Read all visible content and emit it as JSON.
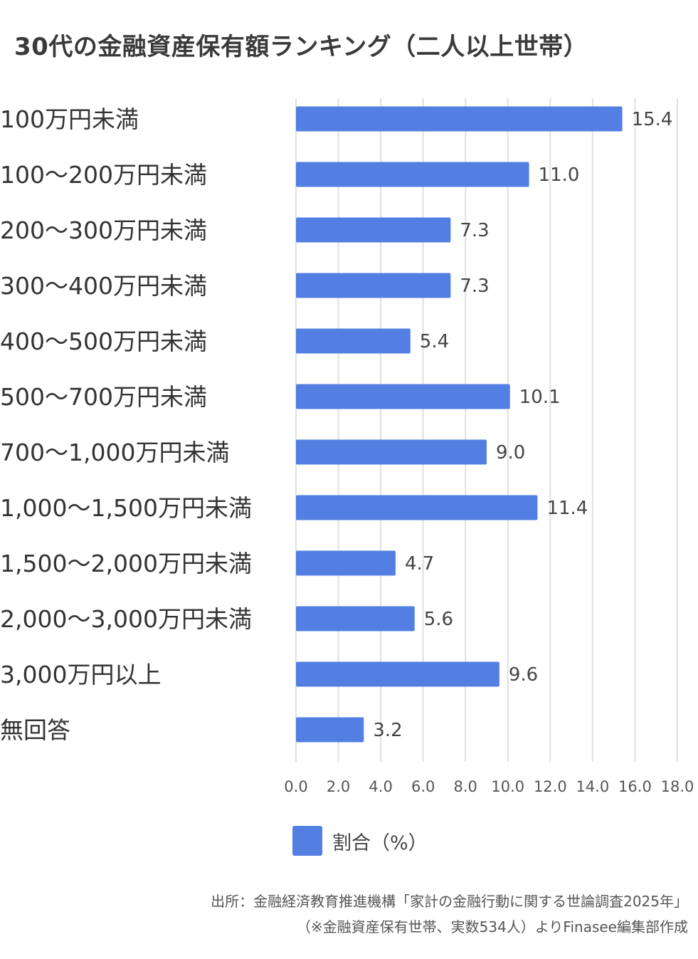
{
  "title": "30代の金融資産保有額ランキング（二人以上世帯）",
  "colors": {
    "bar": "#527fe1",
    "grid": "#e0e0e0",
    "text": "#333333"
  },
  "chart_data": {
    "type": "bar",
    "orientation": "horizontal",
    "categories": [
      "100万円未満",
      "100〜200万円未満",
      "200〜300万円未満",
      "300〜400万円未満",
      "400〜500万円未満",
      "500〜700万円未満",
      "700〜1,000万円未満",
      "1,000〜1,500万円未満",
      "1,500〜2,000万円未満",
      "2,000〜3,000万円未満",
      "3,000万円以上",
      "無回答"
    ],
    "series": [
      {
        "name": "割合（%）",
        "values": [
          15.4,
          11.0,
          7.3,
          7.3,
          5.4,
          10.1,
          9.0,
          11.4,
          4.7,
          5.6,
          9.6,
          3.2
        ]
      }
    ],
    "value_labels": [
      "15.4",
      "11.0",
      "7.3",
      "7.3",
      "5.4",
      "10.1",
      "9.0",
      "11.4",
      "4.7",
      "5.6",
      "9.6",
      "3.2"
    ],
    "xticks": [
      "0.0",
      "2.0",
      "4.0",
      "6.0",
      "8.0",
      "10.0",
      "12.0",
      "14.0",
      "16.0",
      "18.0"
    ],
    "xlim": [
      0,
      18
    ],
    "grid": true,
    "legend_position": "bottom"
  },
  "source": {
    "line1": "出所：金融経済教育推進機構「家計の金融行動に関する世論調査2025年」",
    "line2": "（※金融資産保有世帯、実数534人）よりFinasee編集部作成"
  }
}
